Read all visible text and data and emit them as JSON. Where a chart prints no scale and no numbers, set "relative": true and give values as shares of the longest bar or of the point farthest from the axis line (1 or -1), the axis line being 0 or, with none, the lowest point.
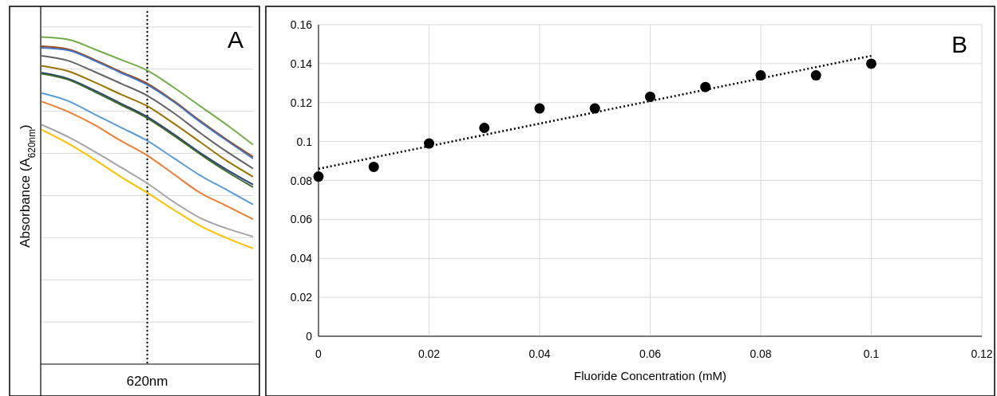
{
  "chart_data": [
    {
      "type": "line",
      "title": "A",
      "ylabel": "Absorbance (A$_{620nm}$)",
      "relative": true,
      "grid": "y",
      "categories": [
        null,
        null,
        null,
        null,
        null,
        null,
        null,
        null,
        null
      ],
      "ref_lines": [
        {
          "axis": "x",
          "label": "620nm",
          "color": "#000000",
          "line_style": "dotted"
        }
      ],
      "series": [
        {
          "color": "#70ad47",
          "values": [
            1.0,
            0.993,
            0.963,
            0.931,
            0.898,
            0.846,
            0.789,
            0.732,
            0.671
          ]
        },
        {
          "color": "#9e480e",
          "values": [
            0.972,
            0.963,
            0.931,
            0.894,
            0.858,
            0.805,
            0.744,
            0.687,
            0.634
          ]
        },
        {
          "color": "#4472c4",
          "values": [
            0.967,
            0.96,
            0.928,
            0.891,
            0.854,
            0.802,
            0.741,
            0.684,
            0.629
          ]
        },
        {
          "color": "#636363",
          "values": [
            0.943,
            0.928,
            0.894,
            0.858,
            0.821,
            0.768,
            0.707,
            0.65,
            0.598
          ]
        },
        {
          "color": "#997300",
          "values": [
            0.912,
            0.896,
            0.862,
            0.825,
            0.789,
            0.736,
            0.679,
            0.622,
            0.573
          ]
        },
        {
          "color": "#264478",
          "values": [
            0.891,
            0.873,
            0.837,
            0.797,
            0.756,
            0.703,
            0.646,
            0.595,
            0.549
          ]
        },
        {
          "color": "#43682b",
          "values": [
            0.888,
            0.87,
            0.833,
            0.793,
            0.752,
            0.699,
            0.642,
            0.589,
            0.541
          ]
        },
        {
          "color": "#5b9bd5",
          "values": [
            0.829,
            0.805,
            0.764,
            0.724,
            0.683,
            0.63,
            0.577,
            0.533,
            0.488
          ]
        },
        {
          "color": "#ed7d31",
          "values": [
            0.803,
            0.772,
            0.732,
            0.683,
            0.638,
            0.581,
            0.524,
            0.484,
            0.443
          ]
        },
        {
          "color": "#a5a5a5",
          "values": [
            0.732,
            0.695,
            0.65,
            0.602,
            0.553,
            0.496,
            0.447,
            0.415,
            0.39
          ]
        },
        {
          "color": "#ffc000",
          "values": [
            0.717,
            0.675,
            0.626,
            0.573,
            0.524,
            0.472,
            0.423,
            0.386,
            0.354
          ]
        }
      ]
    },
    {
      "type": "scatter",
      "title": "B",
      "xlabel": "Fluoride Concentration (mM)",
      "grid": true,
      "marker": "circle",
      "xlim": [
        0,
        0.12
      ],
      "xticks": [
        0,
        0.02,
        0.04,
        0.06,
        0.08,
        0.1,
        0.12
      ],
      "ylim": [
        0,
        0.16
      ],
      "yticks": [
        0,
        0.02,
        0.04,
        0.06,
        0.08,
        0.1,
        0.12,
        0.14,
        0.16
      ],
      "series": [
        {
          "color": "#000000",
          "x": [
            0,
            0.01,
            0.02,
            0.03,
            0.04,
            0.05,
            0.06,
            0.07,
            0.08,
            0.09,
            0.1
          ],
          "values": [
            0.082,
            0.087,
            0.099,
            0.107,
            0.117,
            0.117,
            0.123,
            0.128,
            0.134,
            0.134,
            0.14
          ]
        },
        {
          "type": "line",
          "line_style": "dotted",
          "marker": "none",
          "color": "#000000",
          "x": [
            0,
            0.1
          ],
          "values": [
            0.086,
            0.144
          ]
        }
      ]
    }
  ]
}
